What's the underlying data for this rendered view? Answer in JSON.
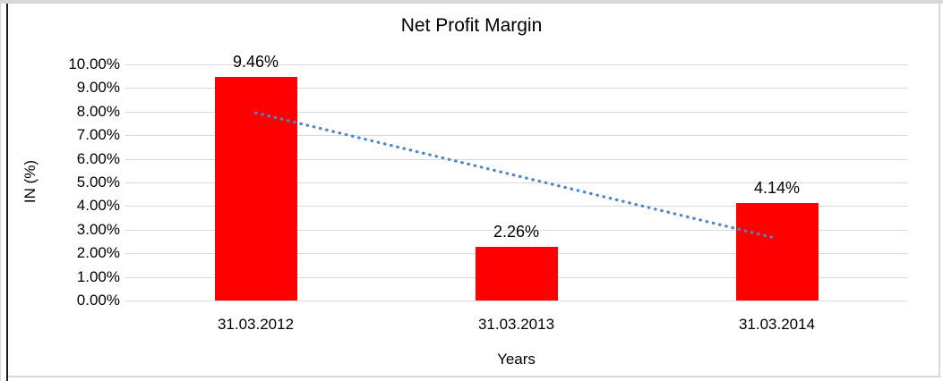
{
  "chart_data": {
    "type": "bar",
    "title": "Net Profit Margin",
    "categories": [
      "31.03.2012",
      "31.03.2013",
      "31.03.2014"
    ],
    "values": [
      9.46,
      2.26,
      4.14
    ],
    "value_labels": [
      "9.46%",
      "2.26%",
      "4.14%"
    ],
    "xlabel": "Years",
    "ylabel": "IN (%)",
    "ylim": [
      0,
      10
    ],
    "ytick_step": 1,
    "ytick_labels": [
      "0.00%",
      "1.00%",
      "2.00%",
      "3.00%",
      "4.00%",
      "5.00%",
      "6.00%",
      "7.00%",
      "8.00%",
      "9.00%",
      "10.00%"
    ],
    "grid": true,
    "legend": "none",
    "bar_color": "#FF0000",
    "gridline_color": "#D9D9D9",
    "trendline": {
      "kind": "linear",
      "style": "dotted",
      "color": "#4E86C8",
      "start_value": 7.95,
      "end_value": 2.63
    }
  },
  "frame": {
    "outer_border_color": "#D8D8D8",
    "inner_left_border_color": "#1C1C1C"
  }
}
